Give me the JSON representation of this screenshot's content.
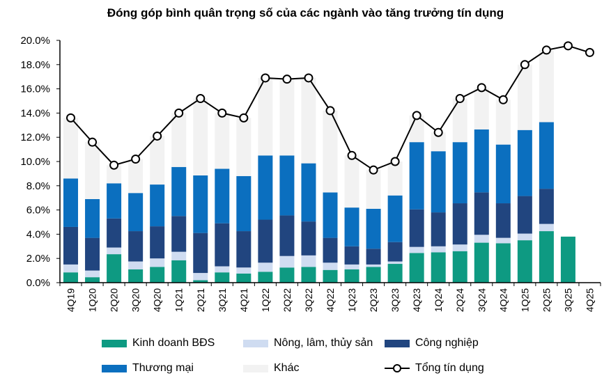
{
  "chart_data": {
    "type": "bar",
    "stacked": true,
    "title": "Đóng góp bình quân trọng số của các ngành vào tăng trưởng tín dụng",
    "xlabel": "",
    "ylabel": "",
    "ylim": [
      0,
      20
    ],
    "yticks": [
      "0.0%",
      "2.0%",
      "4.0%",
      "6.0%",
      "8.0%",
      "10.0%",
      "12.0%",
      "14.0%",
      "16.0%",
      "18.0%",
      "20.0%"
    ],
    "grid": false,
    "legend_position": "bottom",
    "categories": [
      "4Q19",
      "1Q20",
      "2Q20",
      "3Q20",
      "4Q20",
      "1Q21",
      "2Q21",
      "3Q21",
      "4Q21",
      "1Q22",
      "2Q22",
      "3Q22",
      "4Q22",
      "1Q23",
      "2Q23",
      "3Q23",
      "4Q23",
      "1Q24",
      "2Q24",
      "3Q24",
      "4Q24",
      "1Q25",
      "2Q25",
      "3Q25",
      "4Q25"
    ],
    "series": [
      {
        "name": "Kinh doanh BĐS",
        "color": "#0e9a82",
        "values": [
          0.85,
          0.45,
          2.35,
          1.1,
          1.3,
          1.85,
          0.2,
          0.85,
          0.75,
          0.9,
          1.25,
          1.3,
          1.05,
          1.1,
          1.3,
          1.55,
          2.45,
          2.5,
          2.6,
          3.3,
          3.25,
          3.5,
          4.25,
          3.8,
          null
        ]
      },
      {
        "name": "Nông, lâm, thủy sản",
        "color": "#cfdcf1",
        "values": [
          0.65,
          0.55,
          0.55,
          0.65,
          0.7,
          0.7,
          0.6,
          0.5,
          0.5,
          0.75,
          0.95,
          0.95,
          0.6,
          0.4,
          0.2,
          0.2,
          0.5,
          0.5,
          0.55,
          0.65,
          0.45,
          0.55,
          0.6,
          null,
          null
        ]
      },
      {
        "name": "Công nghiệp",
        "color": "#21457f",
        "values": [
          3.1,
          2.7,
          2.4,
          2.5,
          2.65,
          2.95,
          3.3,
          3.55,
          3.0,
          3.55,
          3.35,
          2.8,
          2.05,
          1.5,
          1.3,
          1.6,
          3.1,
          2.8,
          3.4,
          3.5,
          2.85,
          3.1,
          2.9,
          null,
          null
        ]
      },
      {
        "name": "Thương mại",
        "color": "#0b6fbf",
        "values": [
          4.0,
          3.2,
          2.9,
          3.15,
          3.45,
          4.05,
          4.75,
          4.5,
          4.55,
          5.3,
          4.95,
          4.8,
          3.75,
          3.2,
          3.3,
          3.85,
          5.55,
          5.05,
          5.05,
          5.2,
          4.85,
          5.45,
          5.5,
          null,
          null
        ]
      },
      {
        "name": "Khác",
        "color": "#f2f2f2",
        "values": [
          5.0,
          4.7,
          1.5,
          2.8,
          4.0,
          4.45,
          6.35,
          4.6,
          4.8,
          6.4,
          6.3,
          7.05,
          6.75,
          4.3,
          3.2,
          2.8,
          2.2,
          1.55,
          3.6,
          3.45,
          3.7,
          5.4,
          5.95,
          null,
          null
        ]
      }
    ],
    "line": {
      "name": "Tổng tín dụng",
      "color": "#000000",
      "values": [
        13.6,
        11.6,
        9.7,
        10.2,
        12.1,
        14.0,
        15.2,
        14.0,
        13.6,
        16.9,
        16.8,
        16.9,
        14.2,
        10.5,
        9.3,
        10.0,
        13.8,
        12.4,
        15.2,
        16.1,
        15.1,
        18.0,
        19.2,
        19.55,
        19.0
      ]
    }
  }
}
